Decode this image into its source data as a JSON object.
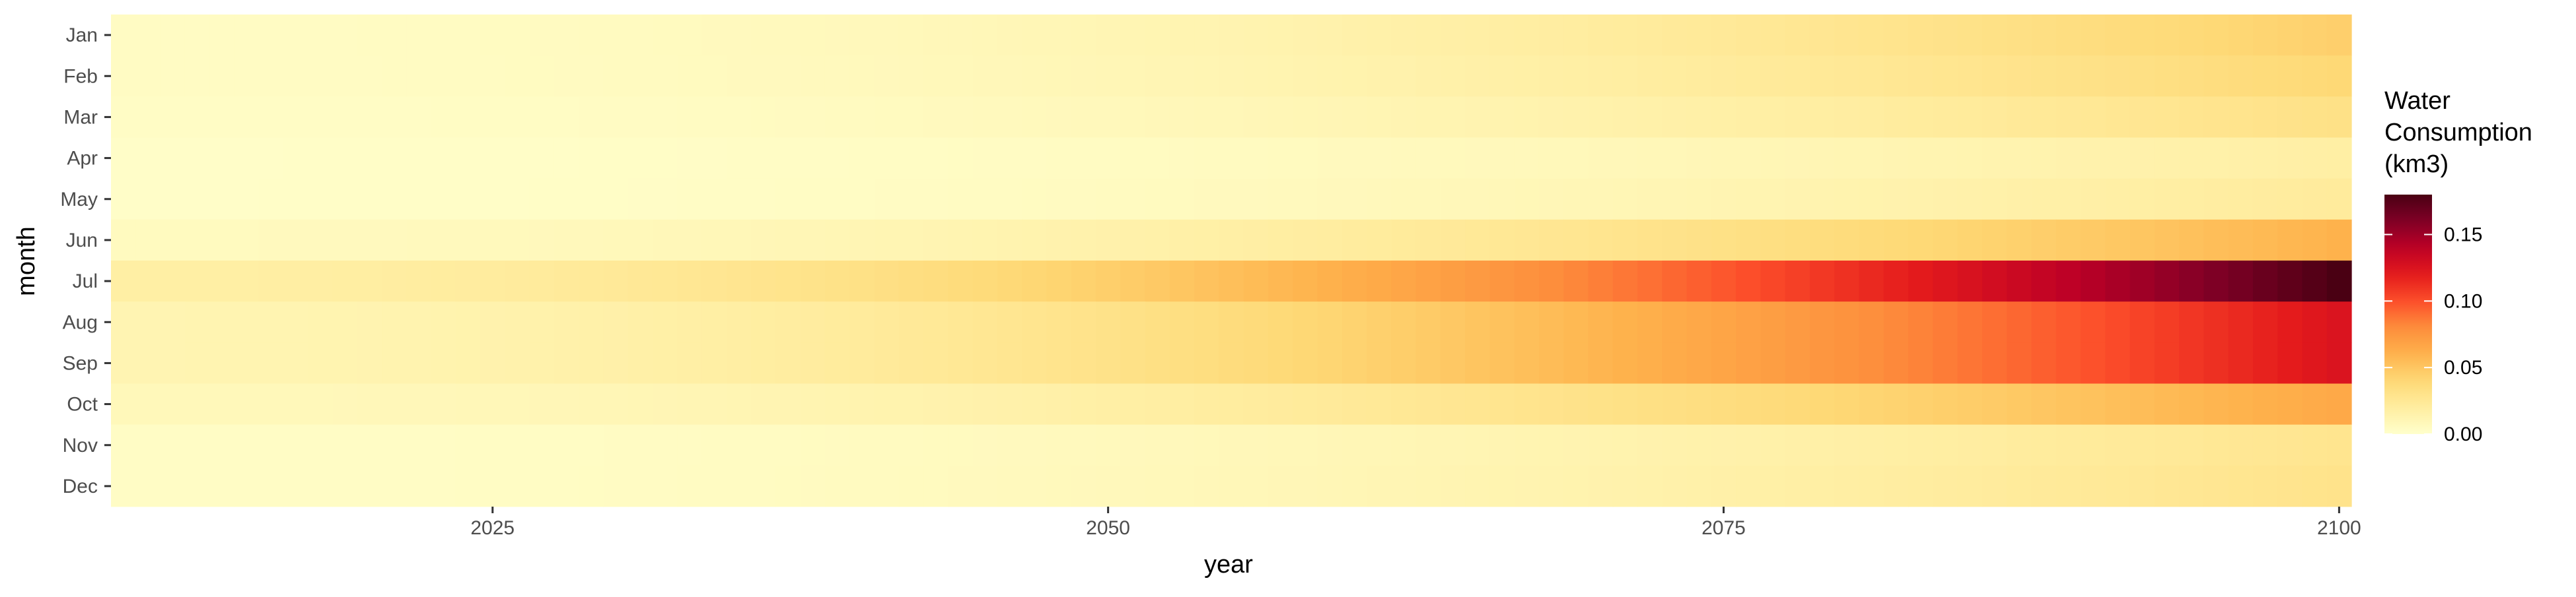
{
  "chart_data": {
    "type": "heatmap",
    "x": {
      "label": "year",
      "start": 2010,
      "end": 2100,
      "ticks": [
        2025,
        2050,
        2075,
        2100
      ]
    },
    "y": {
      "label": "month",
      "categories": [
        "Jan",
        "Feb",
        "Mar",
        "Apr",
        "May",
        "Jun",
        "Jul",
        "Aug",
        "Sep",
        "Oct",
        "Nov",
        "Dec"
      ]
    },
    "series": [
      {
        "month": "Jan",
        "value_2010": 0.004,
        "value_2100": 0.045
      },
      {
        "month": "Feb",
        "value_2010": 0.004,
        "value_2100": 0.04
      },
      {
        "month": "Mar",
        "value_2010": 0.003,
        "value_2100": 0.032
      },
      {
        "month": "Apr",
        "value_2010": 0.002,
        "value_2100": 0.018
      },
      {
        "month": "May",
        "value_2010": 0.002,
        "value_2100": 0.022
      },
      {
        "month": "Jun",
        "value_2010": 0.006,
        "value_2100": 0.06
      },
      {
        "month": "Jul",
        "value_2010": 0.018,
        "value_2100": 0.18
      },
      {
        "month": "Aug",
        "value_2010": 0.012,
        "value_2100": 0.125
      },
      {
        "month": "Sep",
        "value_2010": 0.012,
        "value_2100": 0.125
      },
      {
        "month": "Oct",
        "value_2010": 0.008,
        "value_2100": 0.065
      },
      {
        "month": "Nov",
        "value_2010": 0.003,
        "value_2100": 0.028
      },
      {
        "month": "Dec",
        "value_2010": 0.003,
        "value_2100": 0.03
      }
    ],
    "legend": {
      "title_lines": [
        "Water",
        "Consumption",
        "(km3)"
      ],
      "ticks": [
        0.0,
        0.05,
        0.1,
        0.15
      ],
      "tick_labels": [
        "0.00",
        "0.05",
        "0.10",
        "0.15"
      ],
      "range": [
        0,
        0.18
      ],
      "placement": "right",
      "palette": [
        "#FFFFCC",
        "#FFEDA0",
        "#FED976",
        "#FEB24C",
        "#FD8D3C",
        "#FC4E2A",
        "#E31A1C",
        "#BD0026",
        "#800026",
        "#4A0013"
      ]
    },
    "background": "#ffffff",
    "grid": false
  }
}
